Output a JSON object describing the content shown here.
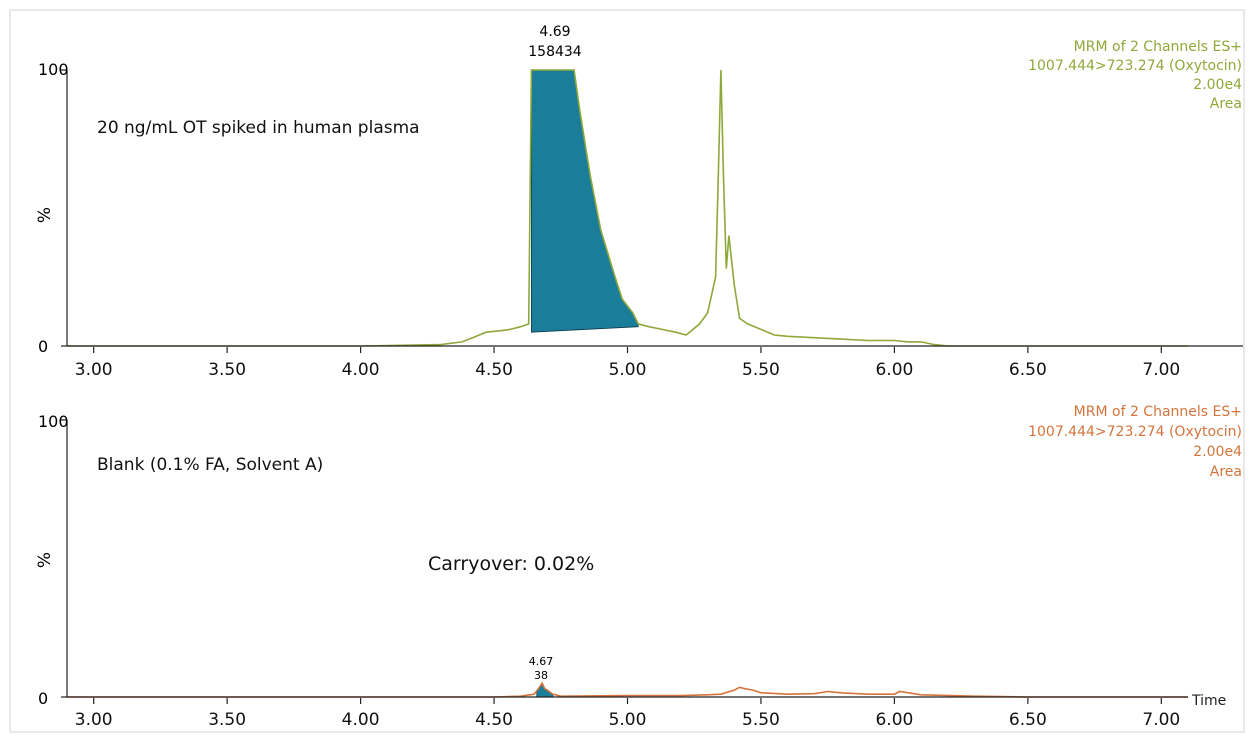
{
  "chart_data": [
    {
      "type": "line",
      "x_axis_label": "",
      "y_axis_label": "%",
      "xlim": [
        2.9,
        7.1
      ],
      "ylim": [
        0,
        100
      ],
      "x_ticks": [
        "3.00",
        "3.50",
        "4.00",
        "4.50",
        "5.00",
        "5.50",
        "6.00",
        "6.50",
        "7.00"
      ],
      "y_ticks": [
        "0",
        "100"
      ],
      "annotation": "20 ng/mL OT spiked in human plasma",
      "color": "#8fa83a",
      "fill_color": "#1a7d9a",
      "info_lines": [
        "MRM of 2 Channels ES+",
        "1007.444>723.274 (Oxytocin)",
        "2.00e4",
        "Area"
      ],
      "peak_label": {
        "rt": "4.69",
        "area": "158434",
        "x": 4.69
      },
      "integrated_region": {
        "x_start": 4.64,
        "x_end": 5.04,
        "baseline_start": 5,
        "baseline_end": 7
      },
      "series": [
        {
          "x": [
            2.9,
            3.5,
            4.0,
            4.3,
            4.38,
            4.42,
            4.47,
            4.52,
            4.56,
            4.6,
            4.63,
            4.64,
            4.65,
            4.8,
            4.82,
            4.86,
            4.9,
            4.95,
            4.98,
            5.02,
            5.04,
            5.08,
            5.13,
            5.18,
            5.22,
            5.27,
            5.3,
            5.33,
            5.34,
            5.35,
            5.36,
            5.37,
            5.38,
            5.4,
            5.42,
            5.45,
            5.5,
            5.55,
            5.6,
            5.7,
            5.8,
            5.9,
            6.0,
            6.05,
            6.1,
            6.15,
            6.2,
            6.5,
            7.1
          ],
          "y": [
            0,
            0,
            0,
            0.5,
            1.5,
            3,
            5,
            5.5,
            6,
            7,
            8,
            100,
            100,
            100,
            86,
            62,
            42,
            26,
            17,
            12,
            8,
            7,
            6,
            5,
            4,
            8,
            12,
            25,
            60,
            100,
            60,
            28,
            40,
            22,
            10,
            8,
            6,
            4,
            3.5,
            3,
            2.5,
            2,
            2,
            1.5,
            1.5,
            0.5,
            0,
            0,
            0
          ]
        }
      ]
    },
    {
      "type": "line",
      "x_axis_label": "Time",
      "y_axis_label": "%",
      "xlim": [
        2.9,
        7.1
      ],
      "ylim": [
        0,
        100
      ],
      "x_ticks": [
        "3.00",
        "3.50",
        "4.00",
        "4.50",
        "5.00",
        "5.50",
        "6.00",
        "6.50",
        "7.00"
      ],
      "y_ticks": [
        "0",
        "100"
      ],
      "annotation": "Blank (0.1% FA, Solvent A)",
      "carryover": "Carryover: 0.02%",
      "color": "#d4743c",
      "fill_color": "#1a7d9a",
      "info_lines": [
        "MRM of 2 Channels ES+",
        "1007.444>723.274 (Oxytocin)",
        "2.00e4",
        "Area"
      ],
      "peak_label": {
        "rt": "4.67",
        "area": "38",
        "x": 4.68
      },
      "integrated_region": {
        "x_start": 4.66,
        "x_end": 4.72
      },
      "series": [
        {
          "x": [
            2.9,
            4.5,
            4.6,
            4.65,
            4.67,
            4.68,
            4.69,
            4.7,
            4.72,
            4.75,
            5.0,
            5.2,
            5.3,
            5.35,
            5.4,
            5.42,
            5.44,
            5.47,
            5.5,
            5.6,
            5.7,
            5.75,
            5.8,
            5.9,
            6.0,
            6.02,
            6.1,
            6.3,
            6.5,
            7.1
          ],
          "y": [
            0,
            0,
            0.3,
            1,
            3.5,
            5,
            3,
            2.5,
            1,
            0.3,
            0.5,
            0.5,
            0.8,
            1,
            2.5,
            3.5,
            3,
            2.5,
            1.5,
            1,
            1.2,
            2,
            1.5,
            1,
            1,
            2,
            0.8,
            0.3,
            0,
            0
          ]
        }
      ]
    }
  ]
}
